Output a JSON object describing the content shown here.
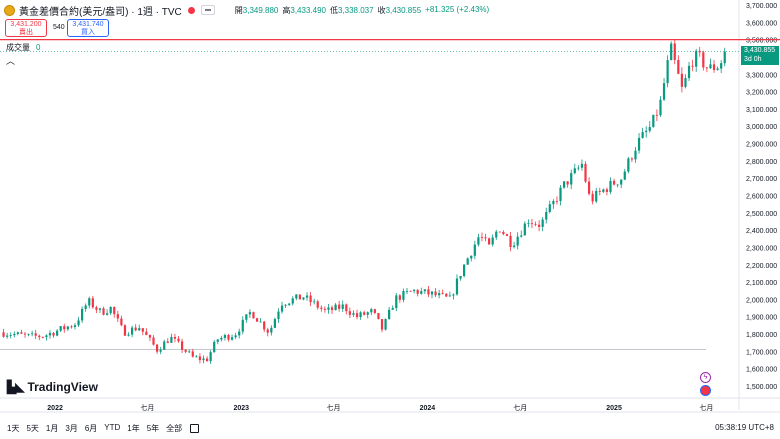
{
  "header": {
    "title": "黃金差價合約(美元/盎司) · 1週 · TVC",
    "ohlc": [
      {
        "label": "開",
        "value": "3,349.880"
      },
      {
        "label": "高",
        "value": "3,433.490"
      },
      {
        "label": "低",
        "value": "3,338.037"
      },
      {
        "label": "收",
        "value": "3,430.855"
      }
    ],
    "change": "+81.325 (+2.43%)"
  },
  "trade": {
    "sell_price": "3,431.200",
    "sell_label": "賣出",
    "spread": "540",
    "buy_price": "3,431.740",
    "buy_label": "買入"
  },
  "volume": {
    "label": "成交量",
    "value": "0"
  },
  "logo": "TradingView",
  "price_badge": {
    "price": "3,430.855",
    "countdown": "3d 0h"
  },
  "bottom": {
    "ranges": [
      "1天",
      "5天",
      "1月",
      "3月",
      "6月",
      "YTD",
      "1年",
      "5年",
      "全部"
    ],
    "clock": "05:38:19 UTC+8"
  },
  "colors": {
    "up": "#089981",
    "down": "#f23645",
    "hline": "#f23645",
    "grid": "#e0e3eb"
  },
  "chart_data": {
    "type": "candlestick",
    "interval": "1W",
    "ylim": [
      1500,
      3700
    ],
    "yticks": [
      1500,
      1600,
      1700,
      1800,
      1900,
      2000,
      2100,
      2200,
      2300,
      2400,
      2500,
      2600,
      2700,
      2800,
      2900,
      3000,
      3100,
      3200,
      3300,
      3400,
      3500,
      3600,
      3700
    ],
    "ytick_labels": [
      "1,500.000",
      "1,600.000",
      "1,700.000",
      "1,800.000",
      "1,900.000",
      "2,000.000",
      "2,100.000",
      "2,200.000",
      "2,300.000",
      "2,400.000",
      "2,500.000",
      "2,600.000",
      "2,700.000",
      "2,800.000",
      "2,900.000",
      "3,000.000",
      "3,100.000",
      "3,200.000",
      "3,300.000",
      "3,400.000",
      "3,500.000",
      "3,600.000",
      "3,700.000"
    ],
    "xticks": [
      {
        "label": "2022",
        "date": "2022-01-01"
      },
      {
        "label": "七月",
        "date": "2022-07-01"
      },
      {
        "label": "2023",
        "date": "2023-01-01"
      },
      {
        "label": "七月",
        "date": "2023-07-01"
      },
      {
        "label": "2024",
        "date": "2024-01-01"
      },
      {
        "label": "七月",
        "date": "2024-07-01"
      },
      {
        "label": "2025",
        "date": "2025-01-01"
      },
      {
        "label": "七月",
        "date": "2025-07-01"
      }
    ],
    "date_range": [
      "2021-09-15",
      "2025-09-01"
    ],
    "horizontal_lines": [
      {
        "price": 3500,
        "color": "#f23645"
      },
      {
        "price": 1710,
        "color": "#b2b5be"
      }
    ],
    "last_price": 3430.855,
    "close_path": [
      [
        "2021-09-15",
        1810
      ],
      [
        "2021-11-15",
        1785
      ],
      [
        "2021-12-10",
        1790
      ],
      [
        "2022-01-15",
        1830
      ],
      [
        "2022-02-10",
        1860
      ],
      [
        "2022-03-07",
        1990
      ],
      [
        "2022-04-01",
        1925
      ],
      [
        "2022-04-20",
        1950
      ],
      [
        "2022-05-15",
        1810
      ],
      [
        "2022-06-15",
        1840
      ],
      [
        "2022-07-20",
        1710
      ],
      [
        "2022-08-15",
        1780
      ],
      [
        "2022-09-28",
        1665
      ],
      [
        "2022-10-25",
        1650
      ],
      [
        "2022-11-15",
        1770
      ],
      [
        "2022-12-20",
        1800
      ],
      [
        "2023-01-20",
        1930
      ],
      [
        "2023-02-25",
        1810
      ],
      [
        "2023-03-20",
        1980
      ],
      [
        "2023-05-03",
        2015
      ],
      [
        "2023-06-15",
        1930
      ],
      [
        "2023-07-20",
        1960
      ],
      [
        "2023-08-15",
        1900
      ],
      [
        "2023-09-15",
        1930
      ],
      [
        "2023-10-05",
        1825
      ],
      [
        "2023-10-30",
        2005
      ],
      [
        "2023-12-04",
        2050
      ],
      [
        "2024-01-10",
        2030
      ],
      [
        "2024-02-14",
        2000
      ],
      [
        "2024-03-10",
        2180
      ],
      [
        "2024-04-12",
        2370
      ],
      [
        "2024-05-01",
        2300
      ],
      [
        "2024-05-20",
        2420
      ],
      [
        "2024-06-15",
        2320
      ],
      [
        "2024-07-17",
        2460
      ],
      [
        "2024-08-10",
        2430
      ],
      [
        "2024-09-25",
        2660
      ],
      [
        "2024-10-30",
        2780
      ],
      [
        "2024-11-15",
        2570
      ],
      [
        "2024-12-15",
        2640
      ],
      [
        "2025-01-15",
        2700
      ],
      [
        "2025-02-15",
        2900
      ],
      [
        "2025-03-15",
        3000
      ],
      [
        "2025-04-01",
        3120
      ],
      [
        "2025-04-22",
        3450
      ],
      [
        "2025-05-15",
        3200
      ],
      [
        "2025-06-01",
        3380
      ],
      [
        "2025-06-15",
        3400
      ],
      [
        "2025-07-05",
        3330
      ],
      [
        "2025-07-25",
        3350
      ],
      [
        "2025-08-10",
        3430.855
      ]
    ]
  }
}
